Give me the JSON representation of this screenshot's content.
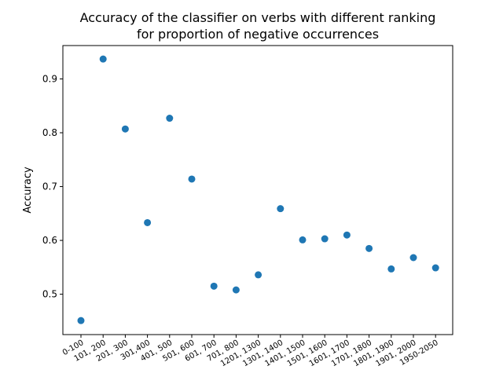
{
  "chart_data": {
    "type": "scatter",
    "title_line1": "Accuracy of the classifier on verbs with different ranking",
    "title_line2": "for proportion of negative occurrences",
    "xlabel": "",
    "ylabel": "Accuracy",
    "categories": [
      "0-100",
      "101, 200",
      "201, 300",
      "301,400",
      "401, 500",
      "501, 600",
      "601, 700",
      "701, 800",
      "1201, 1300",
      "1301, 1400",
      "1401, 1500",
      "1501, 1600",
      "1601, 1700",
      "1701, 1800",
      "1801, 1900",
      "1901, 2000",
      "1950-2050"
    ],
    "values": [
      0.451,
      0.937,
      0.807,
      0.633,
      0.827,
      0.714,
      0.515,
      0.508,
      0.536,
      0.659,
      0.601,
      0.603,
      0.61,
      0.585,
      0.547,
      0.568,
      0.549
    ],
    "ylim": [
      0.425,
      0.962
    ],
    "yticks": [
      "0.5",
      "0.6",
      "0.7",
      "0.8",
      "0.9"
    ],
    "marker_color": "#1f77b4",
    "grid": false,
    "legend": "none"
  }
}
